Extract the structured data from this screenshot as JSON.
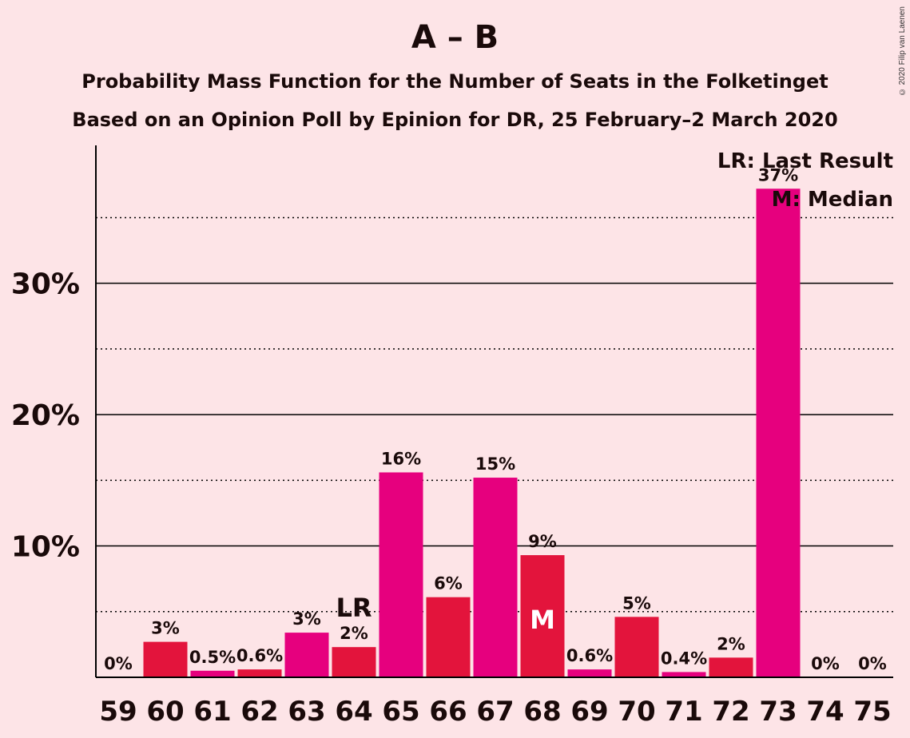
{
  "title": "A – B",
  "subtitle1": "Probability Mass Function for the Number of Seats in the Folketinget",
  "subtitle2": "Based on an Opinion Poll by Epinion for DR, 25 February–2 March 2020",
  "copyright": "© 2020 Filip van Laenen",
  "legend": {
    "lr": "LR: Last Result",
    "median": "M: Median"
  },
  "colors": {
    "background": "#FDE4E7",
    "bar_a": "#E3143C",
    "bar_b": "#E6007E",
    "axis": "#000000"
  },
  "chart_data": {
    "type": "bar",
    "categories": [
      "59",
      "60",
      "61",
      "62",
      "63",
      "64",
      "65",
      "66",
      "67",
      "68",
      "69",
      "70",
      "71",
      "72",
      "73",
      "74",
      "75"
    ],
    "values": [
      0,
      2.7,
      0.5,
      0.6,
      3.4,
      2.3,
      15.6,
      6.1,
      15.2,
      9.3,
      0.6,
      4.6,
      0.4,
      1.5,
      37.2,
      0,
      0
    ],
    "data_labels": [
      "0%",
      "3%",
      "0.5%",
      "0.6%",
      "3%",
      "2%",
      "16%",
      "6%",
      "15%",
      "9%",
      "0.6%",
      "5%",
      "0.4%",
      "2%",
      "37%",
      "0%",
      "0%"
    ],
    "y_ticks": [
      {
        "value": 10,
        "label": "10%"
      },
      {
        "value": 20,
        "label": "20%"
      },
      {
        "value": 30,
        "label": "30%"
      }
    ],
    "minor_gridlines": [
      5,
      15,
      25,
      35
    ],
    "ylim": [
      0,
      40.5
    ],
    "last_result_seat": "64",
    "last_result_label": "LR",
    "median_seat": "68",
    "median_label": "M",
    "legend_position": "top-right"
  }
}
